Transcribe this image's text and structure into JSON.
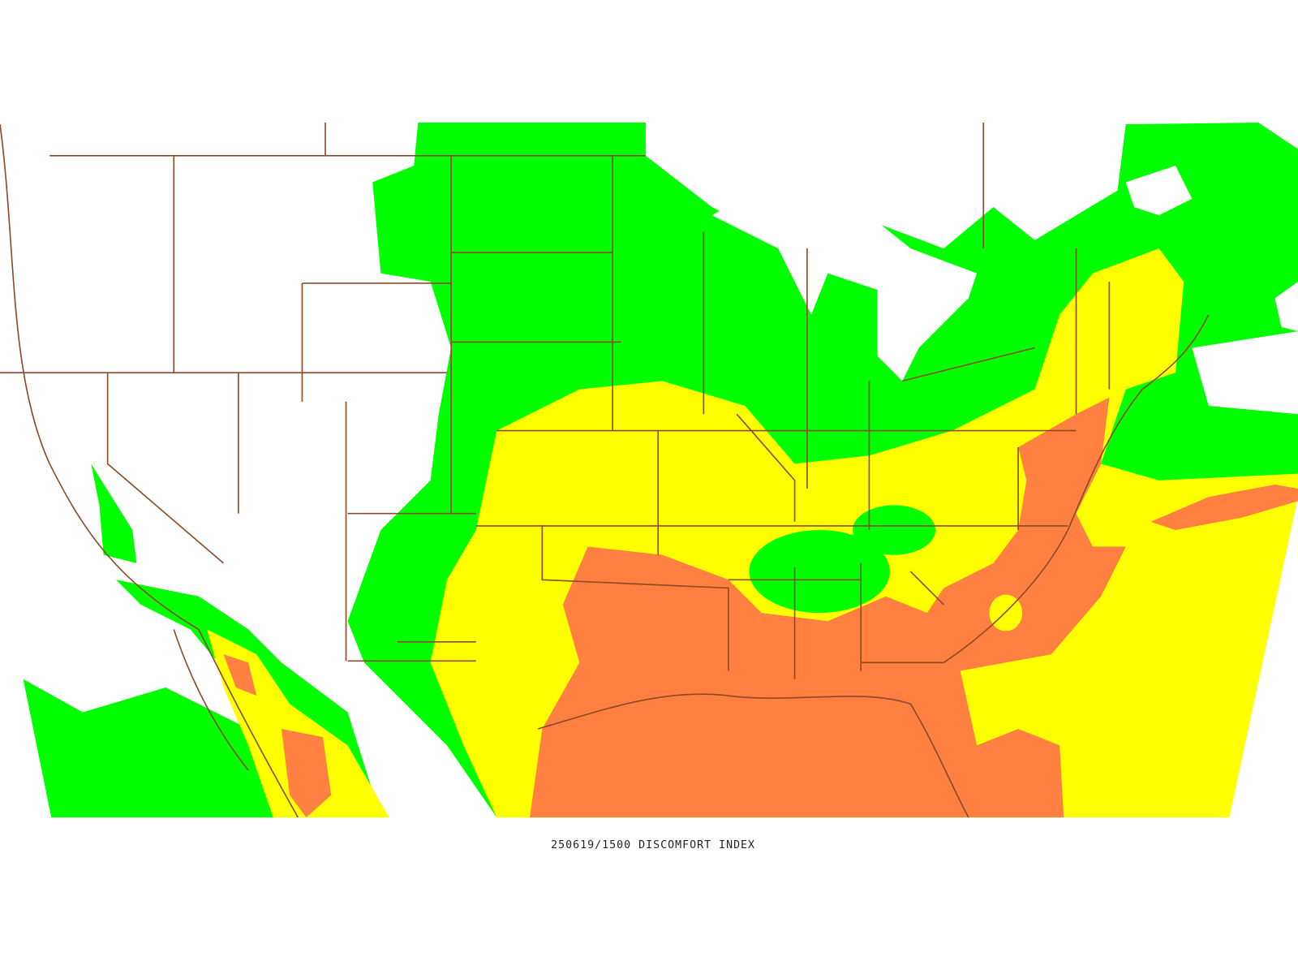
{
  "caption": "250619/1500 DISCOMFORT INDEX"
}
